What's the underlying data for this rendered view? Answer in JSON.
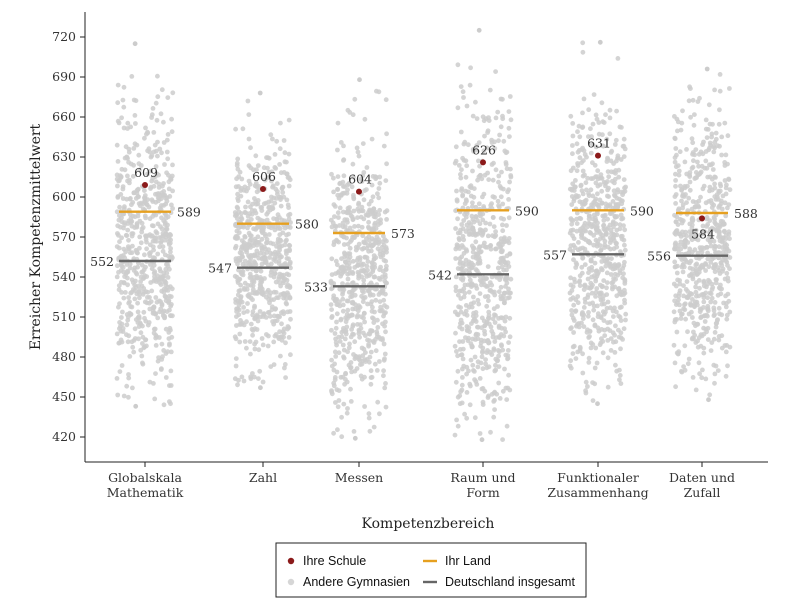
{
  "chart_data": {
    "type": "scatter",
    "xlabel": "Kompetenzbereich",
    "ylabel": "Erreicher Kompetenzmittelwert",
    "ylim": [
      405,
      740
    ],
    "yticks": [
      420,
      450,
      480,
      510,
      540,
      570,
      600,
      630,
      660,
      690,
      720
    ],
    "grid": false,
    "legend_position": "bottom",
    "categories": [
      [
        "Globalskala",
        "Mathematik"
      ],
      [
        "Zahl"
      ],
      [
        "Messen"
      ],
      [
        "Raum und",
        "Form"
      ],
      [
        "Funktionaler",
        "Zusammenhang"
      ],
      [
        "Daten und",
        "Zufall"
      ]
    ],
    "series": [
      {
        "name": "Ihre Schule",
        "kind": "point",
        "color": "#8b1a1a",
        "values": [
          609,
          606,
          604,
          626,
          631,
          584
        ]
      },
      {
        "name": "Ihr Land",
        "kind": "line",
        "color": "#e6a020",
        "values": [
          589,
          580,
          573,
          590,
          590,
          588
        ]
      },
      {
        "name": "Andere Gymnasien",
        "kind": "jitter",
        "color": "#cccccc",
        "ranges": [
          [
            443,
            715
          ],
          [
            457,
            678
          ],
          [
            419,
            688
          ],
          [
            418,
            725
          ],
          [
            445,
            716
          ],
          [
            448,
            696
          ]
        ]
      },
      {
        "name": "Deutschland insgesamt",
        "kind": "line",
        "color": "#666666",
        "values": [
          552,
          547,
          533,
          542,
          557,
          556
        ]
      }
    ],
    "colors": {
      "school": "#8b1a1a",
      "land": "#e6a020",
      "others": "#cccccc",
      "germany": "#666666"
    }
  }
}
